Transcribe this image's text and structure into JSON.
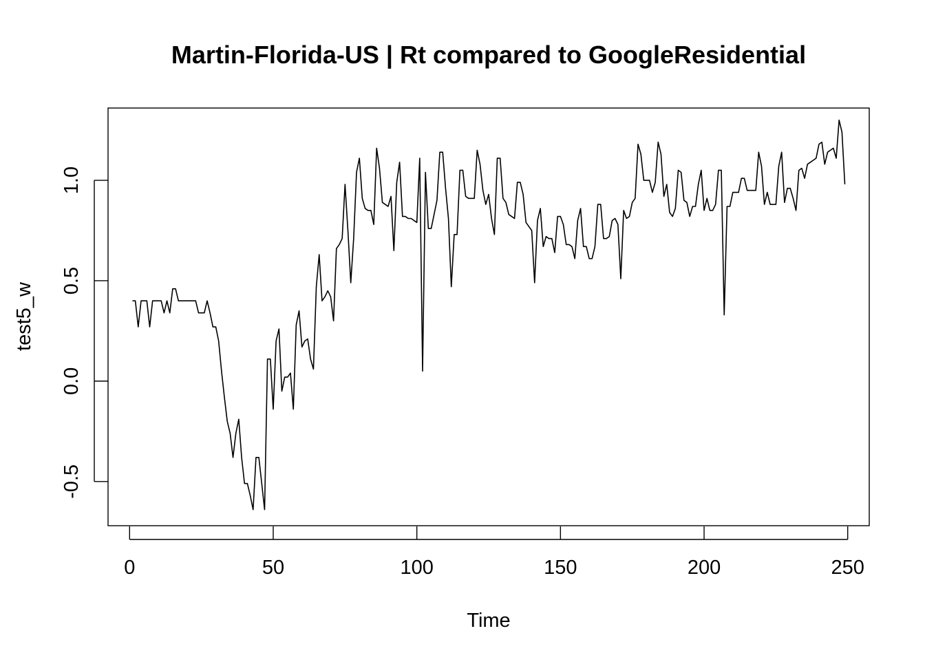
{
  "chart_data": {
    "type": "line",
    "title": "Martin-Florida-US | Rt compared to GoogleResidential",
    "xlabel": "Time",
    "ylabel": "test5_w",
    "xlim": [
      -7.5,
      257.5
    ],
    "ylim": [
      -0.72,
      1.36
    ],
    "x_ticks": [
      0,
      50,
      100,
      150,
      200,
      250
    ],
    "y_ticks": [
      -0.5,
      0.0,
      0.5,
      1.0
    ],
    "x_tick_labels": [
      "0",
      "50",
      "100",
      "150",
      "200",
      "250"
    ],
    "y_tick_labels": [
      "-0.5",
      "0.0",
      "0.5",
      "1.0"
    ],
    "grid": false,
    "legend": "none",
    "line_color": "#000000",
    "series": [
      {
        "x_start": 1,
        "x_step": 1,
        "values": [
          0.4,
          0.4,
          0.27,
          0.4,
          0.4,
          0.4,
          0.27,
          0.4,
          0.4,
          0.4,
          0.4,
          0.34,
          0.4,
          0.34,
          0.46,
          0.46,
          0.4,
          0.4,
          0.4,
          0.4,
          0.4,
          0.4,
          0.4,
          0.34,
          0.34,
          0.34,
          0.4,
          0.34,
          0.27,
          0.27,
          0.2,
          0.05,
          -0.08,
          -0.2,
          -0.26,
          -0.38,
          -0.26,
          -0.19,
          -0.38,
          -0.51,
          -0.51,
          -0.57,
          -0.64,
          -0.38,
          -0.38,
          -0.51,
          -0.64,
          0.11,
          0.11,
          -0.14,
          0.2,
          0.26,
          -0.05,
          0.02,
          0.02,
          0.04,
          -0.14,
          0.28,
          0.35,
          0.17,
          0.2,
          0.21,
          0.11,
          0.06,
          0.47,
          0.63,
          0.4,
          0.42,
          0.45,
          0.42,
          0.3,
          0.66,
          0.68,
          0.71,
          0.98,
          0.75,
          0.49,
          0.71,
          1.04,
          1.11,
          0.91,
          0.86,
          0.85,
          0.85,
          0.78,
          1.16,
          1.06,
          0.89,
          0.88,
          0.87,
          0.92,
          0.65,
          0.99,
          1.09,
          0.82,
          0.82,
          0.81,
          0.81,
          0.8,
          0.79,
          1.11,
          0.05,
          1.04,
          0.76,
          0.76,
          0.83,
          0.9,
          1.14,
          1.14,
          0.96,
          0.81,
          0.47,
          0.73,
          0.73,
          1.05,
          1.05,
          0.92,
          0.91,
          0.91,
          0.91,
          1.15,
          1.08,
          0.95,
          0.88,
          0.93,
          0.81,
          0.73,
          1.11,
          1.11,
          0.91,
          0.89,
          0.83,
          0.82,
          0.81,
          0.99,
          0.99,
          0.93,
          0.79,
          0.77,
          0.75,
          0.49,
          0.8,
          0.86,
          0.67,
          0.72,
          0.71,
          0.71,
          0.64,
          0.82,
          0.82,
          0.78,
          0.68,
          0.68,
          0.67,
          0.61,
          0.8,
          0.86,
          0.67,
          0.67,
          0.61,
          0.61,
          0.67,
          0.88,
          0.88,
          0.71,
          0.71,
          0.72,
          0.8,
          0.81,
          0.78,
          0.51,
          0.85,
          0.81,
          0.82,
          0.89,
          0.91,
          1.18,
          1.13,
          1.0,
          1.0,
          1.0,
          0.94,
          0.99,
          1.19,
          1.13,
          0.92,
          0.98,
          0.84,
          0.82,
          0.86,
          1.05,
          1.04,
          0.9,
          0.89,
          0.82,
          0.87,
          0.87,
          0.98,
          1.05,
          0.85,
          0.91,
          0.85,
          0.85,
          0.88,
          1.05,
          1.05,
          0.33,
          0.87,
          0.87,
          0.94,
          0.94,
          0.94,
          1.01,
          1.01,
          0.95,
          0.95,
          0.95,
          0.95,
          1.14,
          1.07,
          0.88,
          0.94,
          0.88,
          0.88,
          0.88,
          1.07,
          1.14,
          0.89,
          0.96,
          0.96,
          0.91,
          0.85,
          1.05,
          1.06,
          1.01,
          1.08,
          1.09,
          1.1,
          1.11,
          1.18,
          1.19,
          1.08,
          1.14,
          1.15,
          1.16,
          1.11,
          1.3,
          1.24,
          0.98
        ]
      }
    ]
  }
}
